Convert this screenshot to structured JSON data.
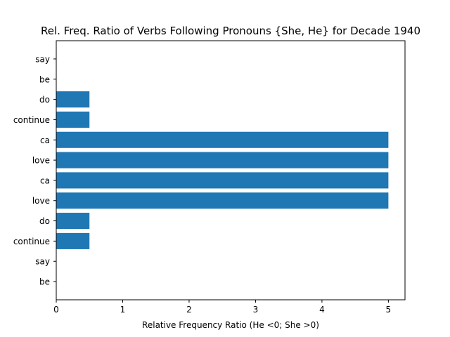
{
  "chart_data": {
    "type": "bar",
    "orientation": "horizontal",
    "title": "Rel. Freq. Ratio of Verbs Following Pronouns {She, He} for Decade 1940",
    "xlabel": "Relative Frequency Ratio (He <0; She >0)",
    "ylabel": "",
    "categories": [
      "say",
      "be",
      "do",
      "continue",
      "ca",
      "love",
      "ca",
      "love",
      "do",
      "continue",
      "say",
      "be"
    ],
    "values": [
      0,
      0,
      0.5,
      0.5,
      5,
      5,
      5,
      5,
      0.5,
      0.5,
      0,
      0
    ],
    "xlim": [
      0,
      5.25
    ],
    "xticks": [
      "0",
      "1",
      "2",
      "3",
      "4",
      "5"
    ],
    "bar_color": "#1f77b4",
    "grid": false,
    "legend": "none"
  }
}
